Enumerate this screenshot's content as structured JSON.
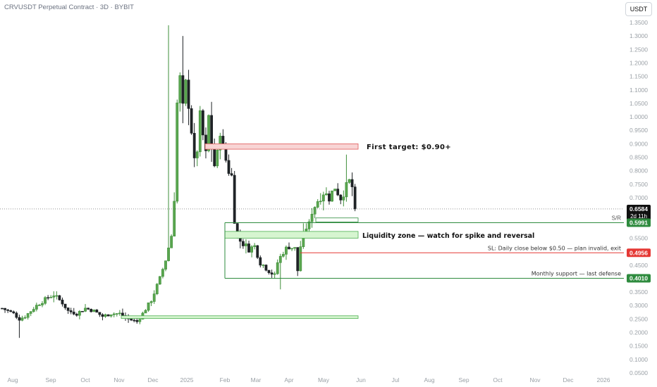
{
  "header": {
    "title": "CRVUSDT Perpetual Contract · 3D · BYBIT",
    "unit": "USDT"
  },
  "colors": {
    "up": "#3f8f3a",
    "down": "#1f2326",
    "target_fill": "#f8d4d4",
    "target_stroke": "#e05a5a",
    "zone_fill": "#d6f5d0",
    "zone_stroke": "#4caf50",
    "support_line": "#2e8b3e",
    "sl_line": "#e53935",
    "price_tag": "#111111",
    "axis_text": "#9aa0a6"
  },
  "chart_data": {
    "type": "candlestick",
    "y_axis": {
      "scale": "linear",
      "range": [
        0.05,
        1.35
      ],
      "ticks": [
        "1.3500",
        "1.3000",
        "1.2500",
        "1.2000",
        "1.1500",
        "1.1000",
        "1.0500",
        "1.0000",
        "0.9500",
        "0.9000",
        "0.8500",
        "0.8000",
        "0.7500",
        "0.7000",
        "0.6500",
        "0.6000",
        "0.5500",
        "0.5000",
        "0.4500",
        "0.4000",
        "0.3500",
        "0.3000",
        "0.2500",
        "0.2000",
        "0.1500",
        "0.1000",
        "0.0500"
      ]
    },
    "x_axis": {
      "timeframe": "3D",
      "labels": [
        "Aug",
        "Sep",
        "Oct",
        "Nov",
        "Dec",
        "2025",
        "Feb",
        "Mar",
        "Apr",
        "May",
        "Jun",
        "Jul",
        "Aug",
        "Sep",
        "Oct",
        "Nov",
        "Dec",
        "2026"
      ]
    },
    "annotations": {
      "first_target": {
        "label": "First target: $0.90+",
        "low": 0.88,
        "high": 0.9
      },
      "sr_zone": {
        "label": "S/R",
        "low": 0.59,
        "high": 0.61
      },
      "liquidity_zone": {
        "label": "Liquidity zone — watch for spike and reversal",
        "low": 0.55,
        "high": 0.575
      },
      "stop_loss": {
        "label": "SL: Daily close below $0.50 — plan invalid, exit",
        "value": 0.4956,
        "tag": "0.4956"
      },
      "monthly_support": {
        "label": "Monthly support — last defense",
        "value": 0.401,
        "tag": "0.4010"
      },
      "sr_tag": "0.5991",
      "bottom_zone": {
        "low": 0.252,
        "high": 0.262
      },
      "current_price": {
        "value": 0.6584,
        "tag": "0.6584",
        "countdown": "2d 11h"
      }
    }
  }
}
